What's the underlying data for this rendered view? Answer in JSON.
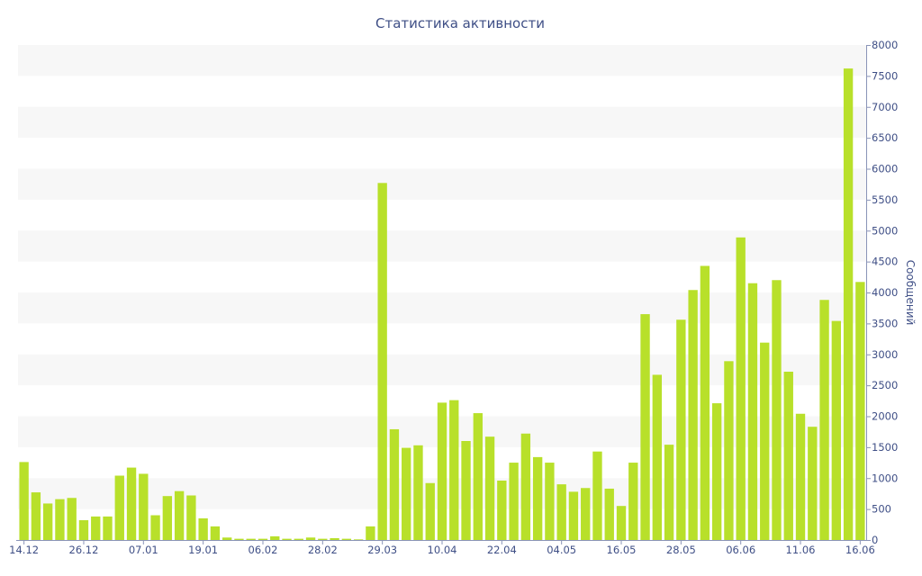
{
  "chart_data": {
    "type": "bar",
    "title": "Статистика активности",
    "xlabel": "",
    "ylabel": "Сообщений",
    "ylim": [
      0,
      8000
    ],
    "yticks": [
      0,
      500,
      1000,
      1500,
      2000,
      2500,
      3000,
      3500,
      4000,
      4500,
      5000,
      5500,
      6000,
      6500,
      7000,
      7500,
      8000
    ],
    "x_tick_labels": [
      "14.12",
      "26.12",
      "07.01",
      "19.01",
      "06.02",
      "28.02",
      "29.03",
      "10.04",
      "22.04",
      "04.05",
      "16.05",
      "28.05",
      "06.06",
      "11.06",
      "16.06"
    ],
    "x_tick_bar_index": [
      0,
      5,
      10,
      15,
      20,
      25,
      30,
      35,
      40,
      45,
      50,
      55,
      60,
      65,
      70
    ],
    "grid": "alternating horizontal bands",
    "y_axis_position": "right",
    "bar_color": "#b8e02a",
    "values": [
      1260,
      770,
      590,
      660,
      680,
      320,
      380,
      380,
      1040,
      1170,
      1070,
      400,
      710,
      790,
      720,
      350,
      220,
      40,
      20,
      20,
      20,
      60,
      20,
      20,
      40,
      20,
      30,
      20,
      10,
      220,
      5770,
      1790,
      1490,
      1530,
      920,
      2220,
      2260,
      1600,
      2050,
      1670,
      960,
      1250,
      1720,
      1340,
      1250,
      900,
      780,
      840,
      1430,
      830,
      550,
      1250,
      3650,
      2670,
      1540,
      3560,
      4040,
      4430,
      2210,
      2890,
      4890,
      4150,
      3190,
      4200,
      2720,
      2040,
      1830,
      3880,
      3540,
      7620,
      4170
    ]
  }
}
